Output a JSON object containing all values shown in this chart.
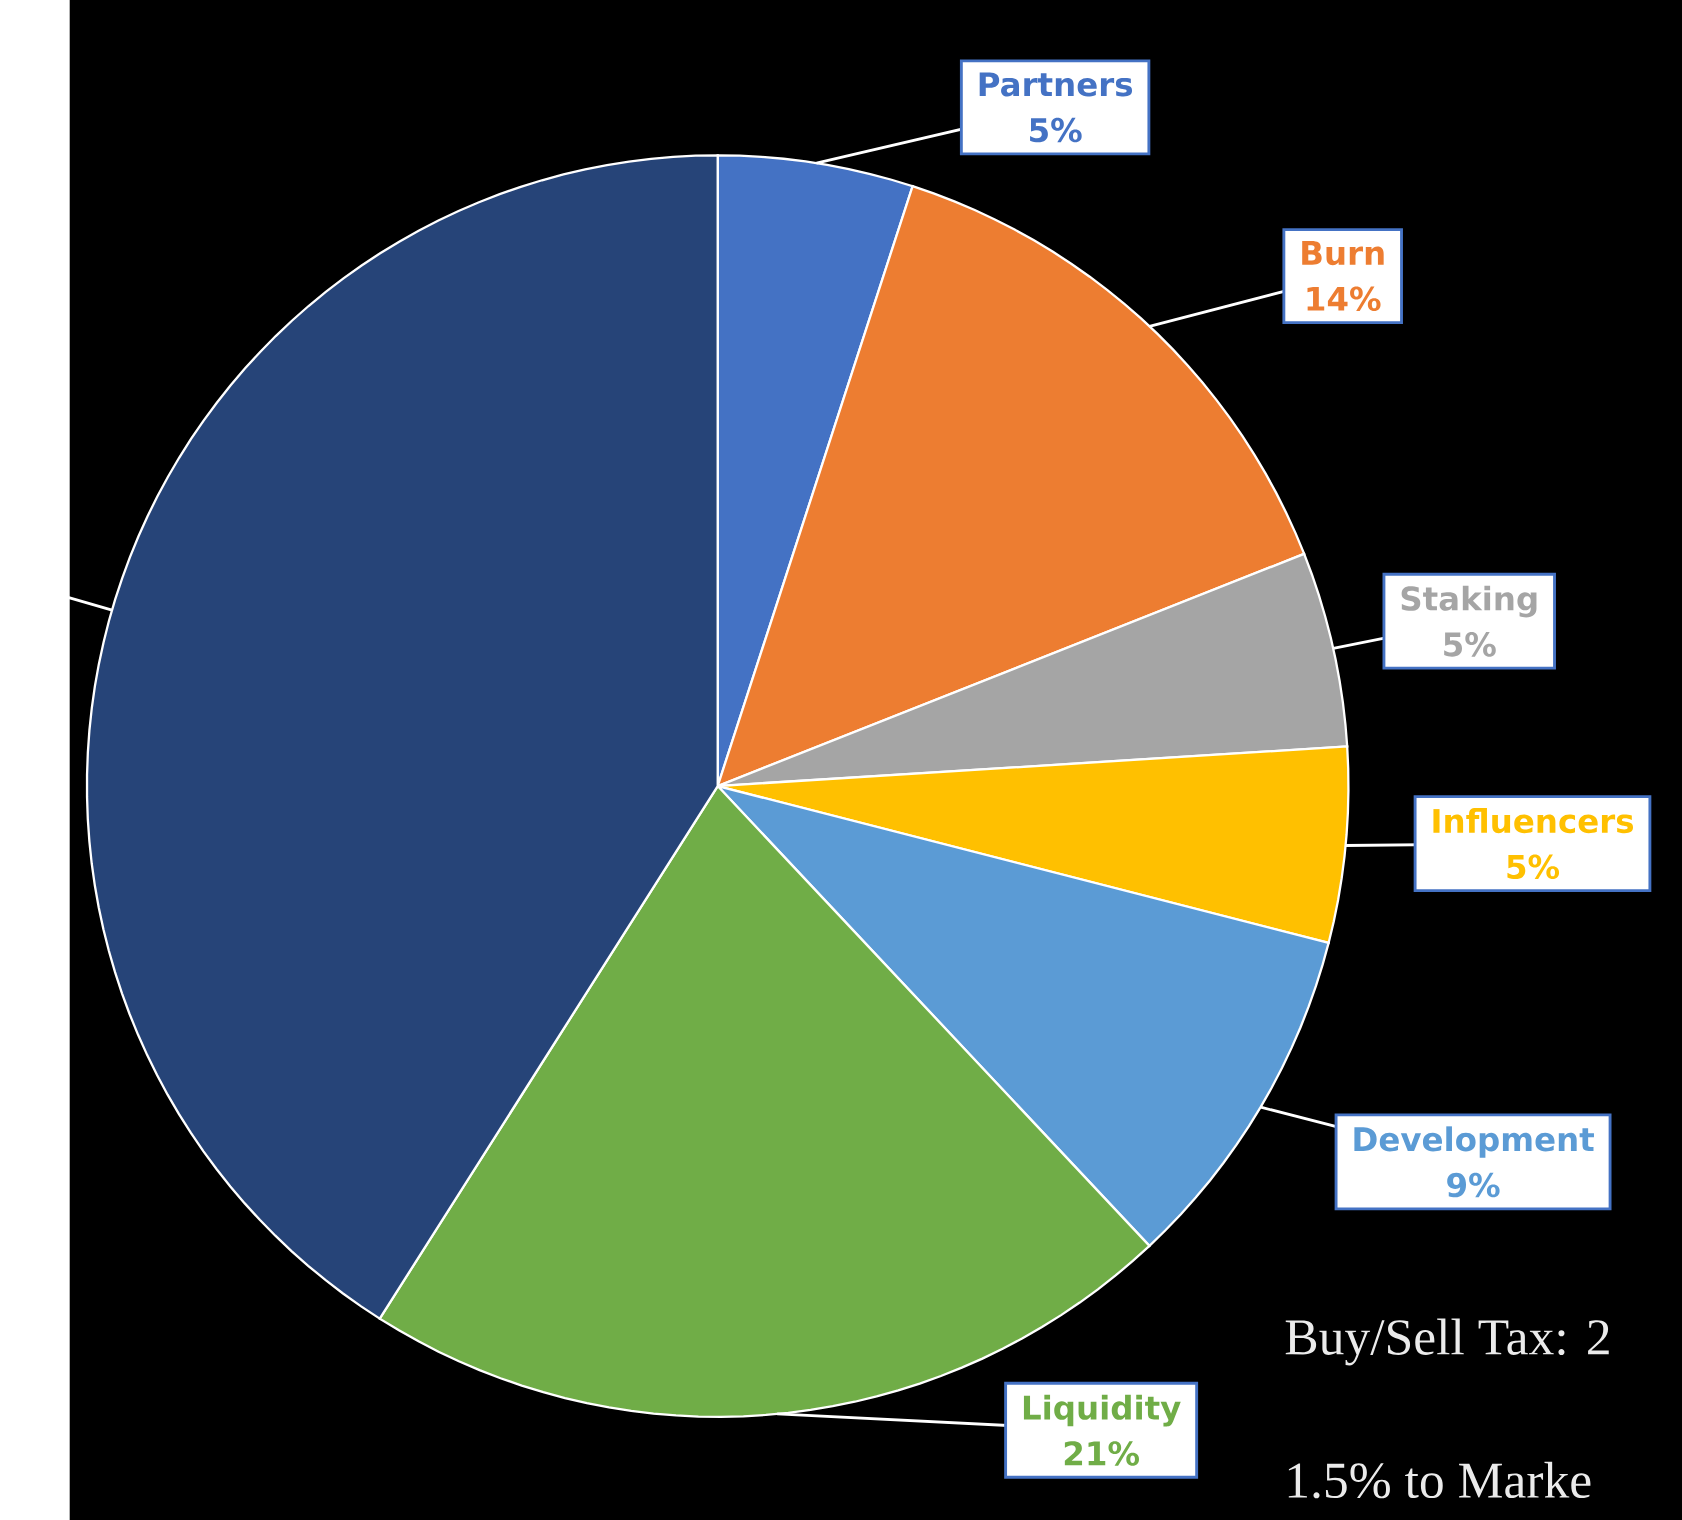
{
  "chart_data": {
    "type": "pie",
    "categories": [
      "Partners",
      "Burn",
      "Staking",
      "Influencers",
      "Development",
      "Liquidity",
      null
    ],
    "values": [
      5,
      14,
      5,
      5,
      9,
      21,
      41
    ],
    "value_labels": [
      "5%",
      "14%",
      "5%",
      "5%",
      "9%",
      "21%",
      null
    ],
    "colors": [
      "#4472c4",
      "#ed7d31",
      "#a5a5a5",
      "#ffc000",
      "#5b9bd5",
      "#70ad47",
      "#264478"
    ],
    "annotations": [
      "Buy/Sell Tax: 2",
      "1.5% to Marke"
    ],
    "legend": false
  }
}
